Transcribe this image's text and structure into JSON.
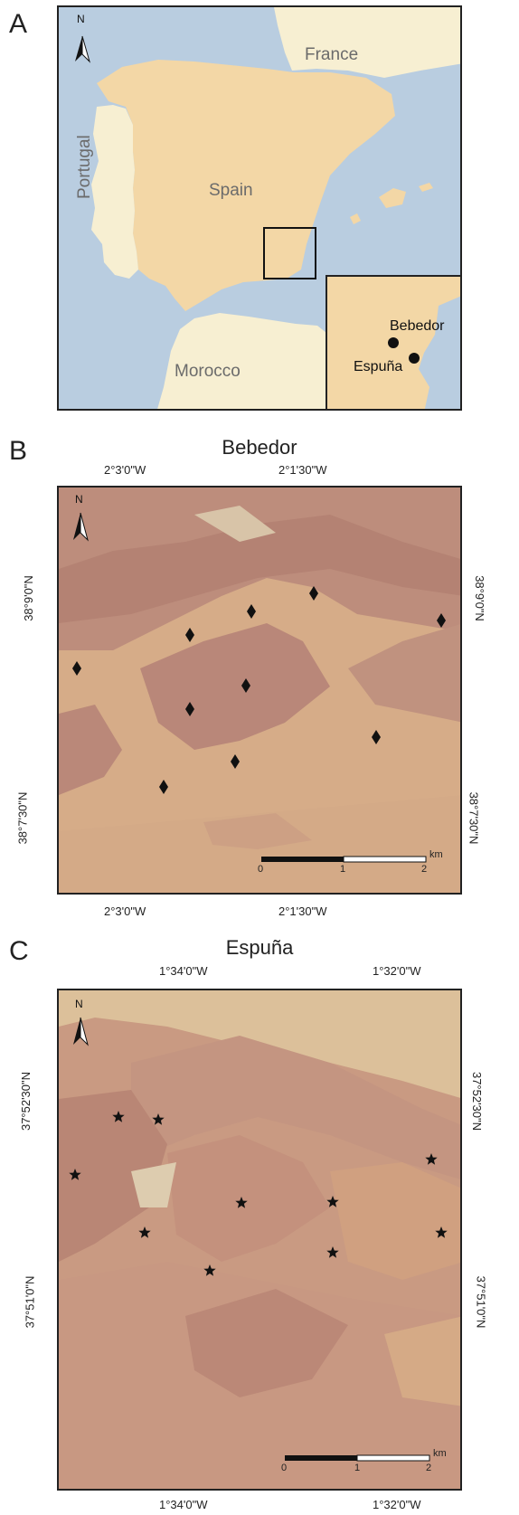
{
  "panels": {
    "a": {
      "letter": "A",
      "north": "N",
      "countries": {
        "france": "France",
        "spain": "Spain",
        "portugal": "Portugal",
        "morocco": "Morocco"
      },
      "inset_sites": {
        "bebedor": "Bebedor",
        "espuna": "Espuña"
      }
    },
    "b": {
      "letter": "B",
      "title": "Bebedor",
      "north": "N",
      "lon_labels": {
        "left": "2°3'0\"W",
        "right": "2°1'30\"W"
      },
      "lat_labels": {
        "top": "38°9'0\"N",
        "bottom": "38°7'30\"N"
      },
      "scale": {
        "t0": "0",
        "t1": "1",
        "t2": "2",
        "unit": "km"
      },
      "marker": "diamond",
      "site_count": 11
    },
    "c": {
      "letter": "C",
      "title": "Espuña",
      "north": "N",
      "lon_labels": {
        "left": "1°34'0\"W",
        "right": "1°32'0\"W"
      },
      "lat_labels": {
        "top": "37°52'30\"N",
        "bottom": "37°51'0\"N"
      },
      "scale": {
        "t0": "0",
        "t1": "1",
        "t2": "2",
        "unit": "km"
      },
      "marker": "star",
      "site_count": 11
    }
  },
  "colors": {
    "sea": "#b9cde0",
    "land_spain": "#f3d7a6",
    "land_other": "#f7efd2",
    "terrain_dark": "#b8897a",
    "terrain_light": "#d9b08a",
    "marker": "#111111"
  }
}
